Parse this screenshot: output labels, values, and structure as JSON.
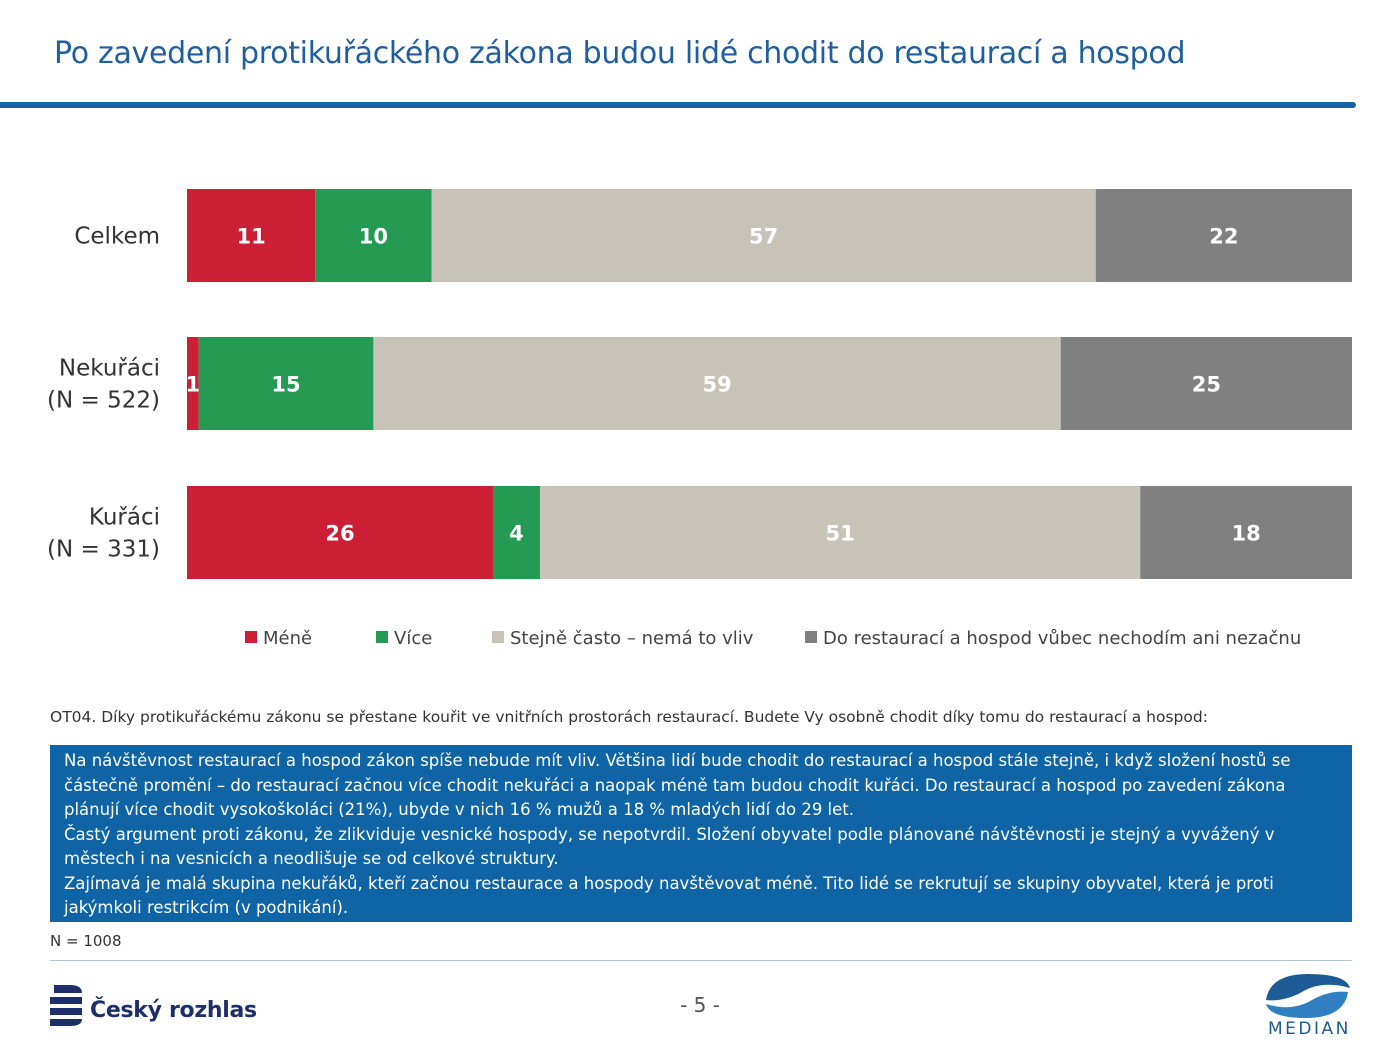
{
  "title": "Po zavedení protikuřáckého zákona budou lidé chodit do restaurací a hospod",
  "colors": {
    "mene": "#cc1e35",
    "vice": "#249a52",
    "stejne": "#c8c3b8",
    "nechodim": "#808080",
    "accent": "#1464a5"
  },
  "chart_data": {
    "type": "bar",
    "orientation": "horizontal",
    "stacked": true,
    "percent": true,
    "legend_position": "bottom",
    "categories": [
      [
        "Celkem"
      ],
      [
        "Nekuřáci",
        "(N = 522)"
      ],
      [
        "Kuřáci",
        "(N = 331)"
      ]
    ],
    "series": [
      {
        "name": "Méně",
        "color": "#cc1e35",
        "values": [
          11,
          1,
          26
        ]
      },
      {
        "name": "Více",
        "color": "#249a52",
        "values": [
          10,
          15,
          4
        ]
      },
      {
        "name": "Stejně často – nemá to vliv",
        "color": "#c8c3b8",
        "values": [
          57,
          59,
          51
        ]
      },
      {
        "name": "Do restaurací a hospod vůbec nechodím ani nezačnu",
        "color": "#808080",
        "values": [
          22,
          25,
          18
        ]
      }
    ]
  },
  "question": "OT04. Díky protikuřáckému zákonu se přestane kouřit ve vnitřních prostorách restaurací. Budete Vy osobně chodit díky tomu do restaurací a hospod:",
  "summary": {
    "p1": "Na návštěvnost restaurací a hospod zákon spíše nebude mít vliv. Většina lidí bude chodit do restaurací a hospod stále stejně, i když složení hostů se částečně promění – do restaurací začnou více chodit nekuřáci a naopak méně tam budou chodit kuřáci. Do restaurací a hospod po zavedení zákona plánují více chodit vysokoškoláci (21%), ubyde v nich 16 % mužů a 18 % mladých lidí do 29 let.",
    "p2": "Častý argument proti zákonu, že zlikviduje vesnické hospody, se nepotvrdil. Složení obyvatel podle plánované návštěvnosti  je stejný a vyvážený v městech i na vesnicích a neodlišuje se od celkové struktury.",
    "p3": "Zajímavá je malá skupina nekuřáků, kteří začnou restaurace a hospody navštěvovat méně. Tito lidé se rekrutují se skupiny obyvatel, která je proti jakýmkoli restrikcím (v podnikání)."
  },
  "sample_note": "N = 1008",
  "page_number": "- 5 -",
  "logos": {
    "left_text": "Český rozhlas",
    "right_text": "MEDIAN"
  }
}
